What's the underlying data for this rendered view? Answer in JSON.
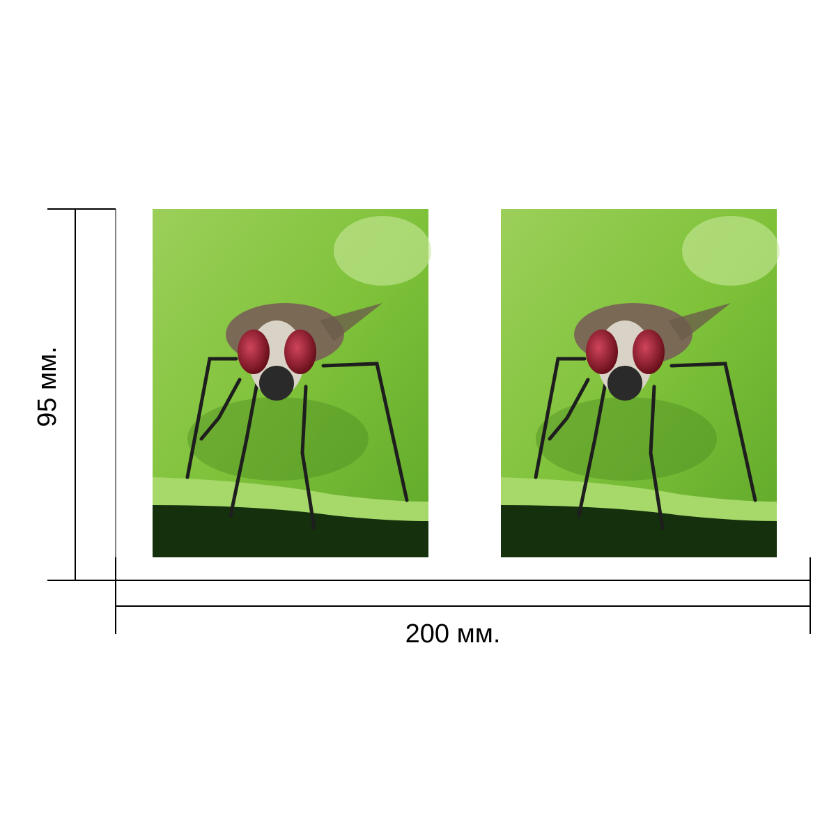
{
  "height_label": "95 мм.",
  "width_label": "200 мм."
}
